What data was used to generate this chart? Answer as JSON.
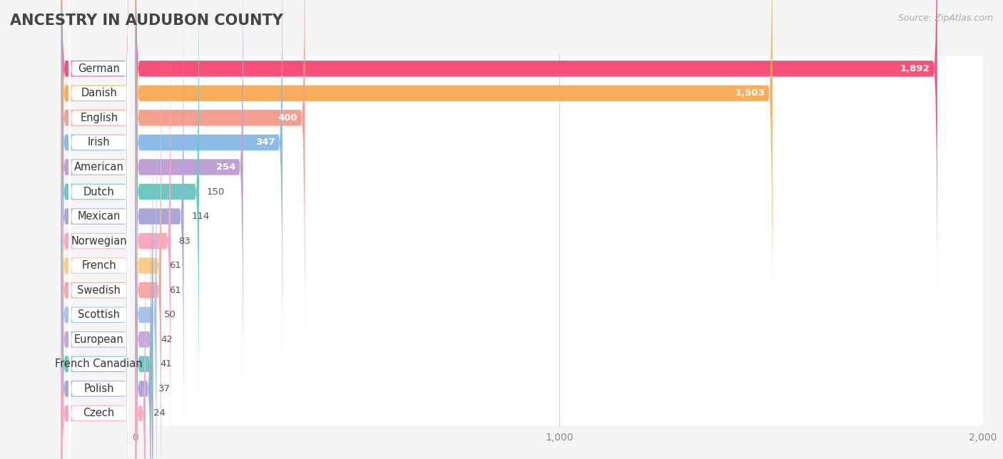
{
  "title": "ANCESTRY IN AUDUBON COUNTY",
  "source": "Source: ZipAtlas.com",
  "categories": [
    "German",
    "Danish",
    "English",
    "Irish",
    "American",
    "Dutch",
    "Mexican",
    "Norwegian",
    "French",
    "Swedish",
    "Scottish",
    "European",
    "French Canadian",
    "Polish",
    "Czech"
  ],
  "values": [
    1892,
    1503,
    400,
    347,
    254,
    150,
    114,
    83,
    61,
    61,
    50,
    42,
    41,
    37,
    24
  ],
  "colors": [
    "#F9527A",
    "#FBAD5A",
    "#F4A090",
    "#8BBCE8",
    "#BEA0D5",
    "#6DC8C0",
    "#A8A8D8",
    "#F9A8C0",
    "#FDCB8A",
    "#F4A8A8",
    "#A8C4E8",
    "#C8A8D8",
    "#6DC8C0",
    "#A8A8D8",
    "#F9A8C0"
  ],
  "xlim": [
    0,
    2000
  ],
  "xtick_vals": [
    0,
    1000,
    2000
  ],
  "xtick_labels": [
    "0",
    "1,000",
    "2,000"
  ],
  "background_color": "#f5f5f5",
  "row_bg_color": "#ffffff",
  "title_fontsize": 15,
  "label_fontsize": 10.5,
  "value_fontsize": 9.5,
  "source_fontsize": 9,
  "bar_height": 0.65,
  "value_threshold_inside": 200
}
